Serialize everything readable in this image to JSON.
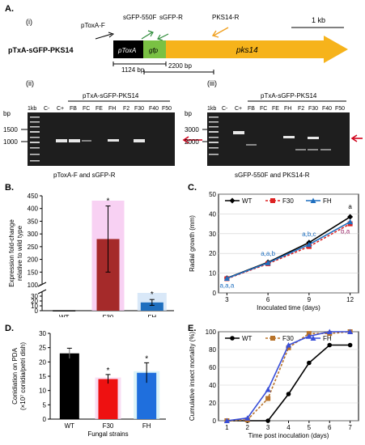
{
  "panelA": {
    "label": "A.",
    "sub_i": "(i)",
    "construct_name": "pTxA-sGFP-PKS14",
    "block_ptoxa": "pToxA",
    "block_gfp": "gfp",
    "block_pks": "pks14",
    "primer_ptoxaf": "pToxA-F",
    "primer_sgfp550f": "sGFP-550F",
    "primer_sgfpr": "sGFP-R",
    "primer_pks14r": "PKS14-R",
    "scale": "1 kb",
    "dim1": "1124 bp",
    "dim2": "2200 bp",
    "colors": {
      "ptoxa": "#000000",
      "gfp": "#7ac143",
      "pks": "#f6b31b",
      "arrow_green": "#2e8b3a",
      "arrow_orange": "#f0a020"
    }
  },
  "gel_ii": {
    "label": "(ii)",
    "bp_label": "bp",
    "group": "pTxA-sGFP-PKS14",
    "lanes": [
      "1kb",
      "C-",
      "C+",
      "FB",
      "FC",
      "FE",
      "FH",
      "F2",
      "F30",
      "F40",
      "F50"
    ],
    "markers": [
      "1500",
      "1000"
    ],
    "caption": "pToxA-F and sGFP-R"
  },
  "gel_iii": {
    "label": "(iii)",
    "bp_label": "bp",
    "group": "pTxA-sGFP-PKS14",
    "lanes": [
      "1kb",
      "C-",
      "C+",
      "FB",
      "FC",
      "FE",
      "FH",
      "F2",
      "F30",
      "F40",
      "F50"
    ],
    "markers": [
      "3000",
      "2000"
    ],
    "caption": "sGFP-550F and PKS14-R"
  },
  "chartB": {
    "label": "B.",
    "chart_data": {
      "type": "bar",
      "categories": [
        "WT",
        "F30",
        "FH"
      ],
      "values": [
        1,
        280,
        17
      ],
      "errors": [
        0,
        130,
        6
      ],
      "ylabel": "Expression fold-change relative to wild type",
      "xlabel": "Fungal strains",
      "axis_breaks": [
        {
          "lower": [
            0,
            40
          ],
          "upper": [
            100,
            450
          ]
        }
      ],
      "yticks": [
        "0",
        "10",
        "20",
        "30",
        "100",
        "150",
        "200",
        "250",
        "300",
        "350",
        "400",
        "450"
      ],
      "significance": [
        "",
        "*",
        "*"
      ],
      "colors": [
        "#000000",
        "#a52a2a",
        "#1f6fbf"
      ]
    }
  },
  "chartC": {
    "label": "C.",
    "chart_data": {
      "type": "line",
      "x": [
        3,
        6,
        9,
        12
      ],
      "xticks": [
        "3",
        "6",
        "9",
        "12"
      ],
      "series": [
        {
          "name": "WT",
          "values": [
            7.5,
            15.5,
            25.5,
            38.5
          ],
          "color": "#000000"
        },
        {
          "name": "F30",
          "values": [
            7.2,
            14.8,
            23.5,
            35.0
          ],
          "color": "#dd2222"
        },
        {
          "name": "FH",
          "values": [
            7.4,
            15.2,
            24.5,
            36.0
          ],
          "color": "#1f6fbf"
        }
      ],
      "ylim": [
        0,
        50
      ],
      "yticks": [
        "0",
        "10",
        "20",
        "30",
        "40",
        "50"
      ],
      "ylabel": "Radial growth (mm)",
      "xlabel": "Inoculated time (days)",
      "annotations": [
        {
          "x": 3,
          "text": "a,a,a"
        },
        {
          "x": 6,
          "text": "a,a,b"
        },
        {
          "x": 9,
          "text": "a,b,c"
        },
        {
          "x": 12,
          "text": "a"
        },
        {
          "x": 12,
          "text": "b,a"
        }
      ],
      "legend": "top"
    }
  },
  "chartD": {
    "label": "D.",
    "chart_data": {
      "type": "bar",
      "categories": [
        "WT",
        "F30",
        "FH"
      ],
      "values": [
        23,
        14,
        16.2
      ],
      "errors": [
        1.8,
        1.6,
        3.5
      ],
      "ylim": [
        0,
        30
      ],
      "yticks": [
        "0",
        "5",
        "10",
        "15",
        "20",
        "25",
        "30"
      ],
      "ylabel": "Conidiation on PDA (×10⁷ conidia/petri dish)",
      "xlabel": "Fungal strains",
      "significance": [
        "",
        "*",
        "*"
      ],
      "colors": [
        "#000000",
        "#ee1111",
        "#1f6fdd"
      ]
    }
  },
  "chartE": {
    "label": "E.",
    "chart_data": {
      "type": "line",
      "x": [
        1,
        2,
        3,
        4,
        5,
        6,
        7
      ],
      "xticks": [
        "1",
        "2",
        "3",
        "4",
        "5",
        "6",
        "7"
      ],
      "series": [
        {
          "name": "WT",
          "values": [
            0,
            0,
            0,
            30,
            65,
            85,
            85
          ],
          "color": "#000000"
        },
        {
          "name": "F30",
          "values": [
            0,
            1,
            25,
            82,
            98,
            98,
            100
          ],
          "color": "#b8732a"
        },
        {
          "name": "FH",
          "values": [
            0,
            3,
            35,
            85,
            95,
            100,
            100
          ],
          "color": "#3a4fd8"
        }
      ],
      "ylim": [
        0,
        100
      ],
      "yticks": [
        "0",
        "20",
        "40",
        "60",
        "80",
        "100"
      ],
      "ylabel": "Cumulative insect mortality (%)",
      "xlabel": "Time post inoculation (days)",
      "legend": "top"
    }
  }
}
